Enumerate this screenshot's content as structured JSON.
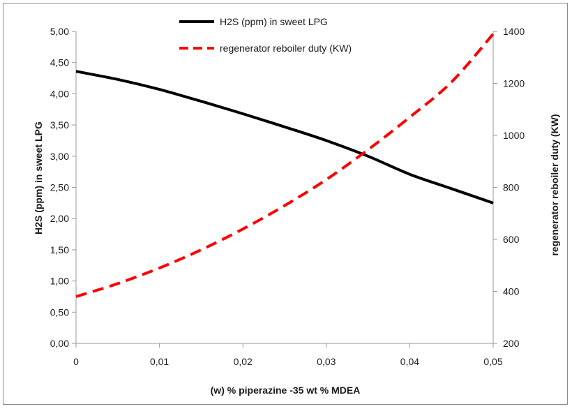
{
  "chart_data": {
    "type": "line",
    "title": "",
    "xlabel": "(w) % piperazine -35 wt % MDEA",
    "ylabel_left": "H2S (ppm) in sweet LPG",
    "ylabel_right": "regenerator reboiler duty (KW)",
    "xlim": [
      0,
      0.05
    ],
    "ylim_left": [
      0,
      5
    ],
    "ylim_right": [
      200,
      1400
    ],
    "x_ticks": [
      "0",
      "0,01",
      "0,02",
      "0,03",
      "0,04",
      "0,05"
    ],
    "y_left_ticks": [
      "0,00",
      "0,50",
      "1,00",
      "1,50",
      "2,00",
      "2,50",
      "3,00",
      "3,50",
      "4,00",
      "4,50",
      "5,00"
    ],
    "y_right_ticks": [
      "200",
      "400",
      "600",
      "800",
      "1000",
      "1200",
      "1400"
    ],
    "grid": false,
    "legend_position": "top-center",
    "series": [
      {
        "name": "H2S (ppm) in sweet LPG",
        "axis": "left",
        "color": "#000000",
        "style": "solid",
        "x": [
          0,
          0.005,
          0.01,
          0.015,
          0.02,
          0.025,
          0.03,
          0.035,
          0.04,
          0.045,
          0.05
        ],
        "y": [
          4.36,
          4.23,
          4.07,
          3.88,
          3.68,
          3.47,
          3.25,
          3.0,
          2.71,
          2.48,
          2.25
        ]
      },
      {
        "name": "regenerator reboiler duty (KW)",
        "axis": "right",
        "color": "#ff0000",
        "style": "dashed",
        "x": [
          0,
          0.005,
          0.01,
          0.015,
          0.02,
          0.025,
          0.03,
          0.035,
          0.04,
          0.045,
          0.05
        ],
        "y": [
          380,
          430,
          490,
          560,
          640,
          730,
          830,
          945,
          1070,
          1205,
          1390
        ]
      }
    ]
  }
}
